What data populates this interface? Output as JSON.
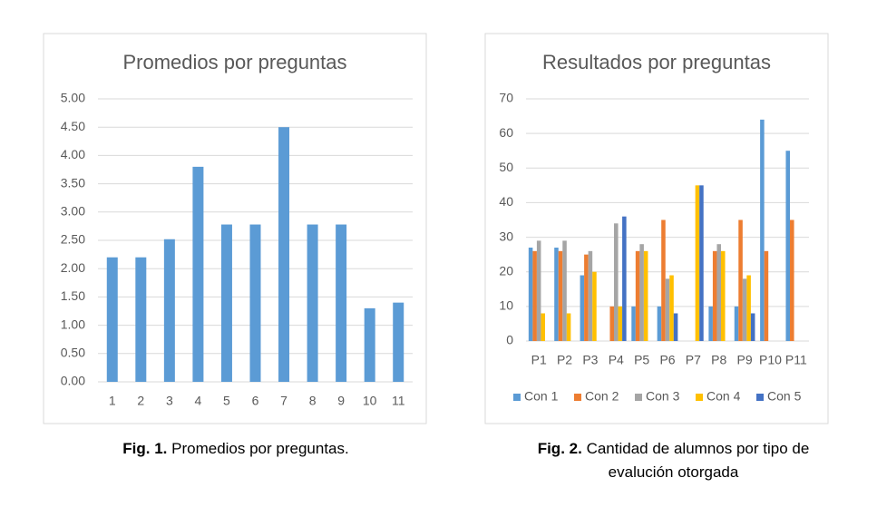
{
  "chart_data": [
    {
      "type": "bar",
      "title": "Promedios por preguntas",
      "color": "#5b9bd5",
      "categories": [
        "1",
        "2",
        "3",
        "4",
        "5",
        "6",
        "7",
        "8",
        "9",
        "10",
        "11"
      ],
      "values": [
        2.2,
        2.2,
        2.52,
        3.8,
        2.78,
        2.78,
        4.5,
        2.78,
        2.78,
        1.3,
        1.4
      ],
      "ylim": [
        0,
        5
      ],
      "yticks": [
        {
          "value": 0,
          "label": "0.00"
        },
        {
          "value": 0.5,
          "label": "0.50"
        },
        {
          "value": 1,
          "label": "1.00"
        },
        {
          "value": 1.5,
          "label": "1.50"
        },
        {
          "value": 2,
          "label": "2.00"
        },
        {
          "value": 2.5,
          "label": "2.50"
        },
        {
          "value": 3,
          "label": "3.00"
        },
        {
          "value": 3.5,
          "label": "3.50"
        },
        {
          "value": 4,
          "label": "4.00"
        },
        {
          "value": 4.5,
          "label": "4.50"
        },
        {
          "value": 5,
          "label": "5.00"
        }
      ],
      "grid": true
    },
    {
      "type": "bar",
      "title": "Resultados por preguntas",
      "categories": [
        "P1",
        "P2",
        "P3",
        "P4",
        "P5",
        "P6",
        "P7",
        "P8",
        "P9",
        "P10",
        "P11"
      ],
      "series": [
        {
          "name": "Con 1",
          "color": "#5b9bd5",
          "values": [
            27,
            27,
            19,
            0,
            10,
            10,
            0,
            10,
            10,
            64,
            55
          ]
        },
        {
          "name": "Con 2",
          "color": "#ed7d31",
          "values": [
            26,
            26,
            25,
            10,
            26,
            35,
            0,
            26,
            35,
            26,
            35
          ]
        },
        {
          "name": "Con 3",
          "color": "#a5a5a5",
          "values": [
            29,
            29,
            26,
            34,
            28,
            18,
            0,
            28,
            18,
            0,
            0
          ]
        },
        {
          "name": "Con 4",
          "color": "#ffc000",
          "values": [
            8,
            8,
            20,
            10,
            26,
            19,
            45,
            26,
            19,
            0,
            0
          ]
        },
        {
          "name": "Con 5",
          "color": "#4472c4",
          "values": [
            0,
            0,
            0,
            36,
            0,
            8,
            45,
            0,
            8,
            0,
            0
          ]
        }
      ],
      "ylim": [
        0,
        70
      ],
      "yticks": [
        0,
        10,
        20,
        30,
        40,
        50,
        60,
        70
      ],
      "grid": true,
      "legend": "bottom"
    }
  ],
  "captions": [
    {
      "label": "Fig. 1.",
      "text": "Promedios por preguntas."
    },
    {
      "label": "Fig. 2.",
      "text": "Cantidad de alumnos por tipo de evalución otorgada"
    }
  ]
}
